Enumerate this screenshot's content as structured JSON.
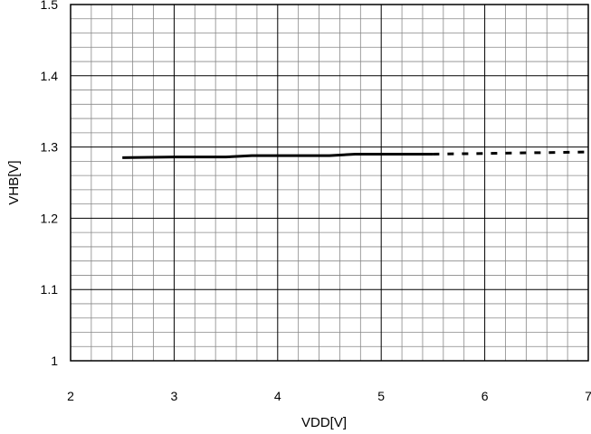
{
  "chart_data": {
    "type": "line",
    "title": "",
    "xlabel": "VDD[V]",
    "ylabel": "VHB[V]",
    "xlim": [
      2,
      7
    ],
    "ylim": [
      1.0,
      1.5
    ],
    "x_ticks": [
      "2",
      "3",
      "4",
      "5",
      "6",
      "7"
    ],
    "y_ticks": [
      "1",
      "1.1",
      "1.2",
      "1.3",
      "1.4",
      "1.5"
    ],
    "grid": true,
    "minor_grid": true,
    "legend": "none",
    "series": [
      {
        "style": "solid",
        "color": "#000000",
        "x": [
          2.5,
          3.0,
          3.5,
          3.75,
          4.0,
          4.5,
          4.75,
          5.0,
          5.5
        ],
        "y": [
          1.285,
          1.286,
          1.286,
          1.288,
          1.288,
          1.288,
          1.29,
          1.29,
          1.29
        ]
      },
      {
        "style": "dashed",
        "color": "#000000",
        "x": [
          5.5,
          6.0,
          6.5,
          7.0
        ],
        "y": [
          1.29,
          1.291,
          1.292,
          1.293
        ]
      }
    ]
  }
}
